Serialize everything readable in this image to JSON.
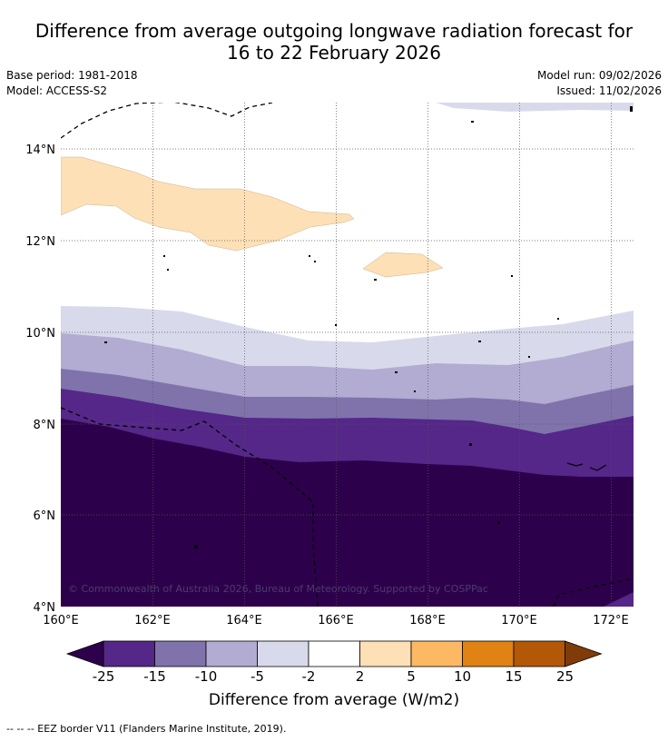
{
  "title_line1": "Difference from average outgoing longwave radiation forecast for",
  "title_line2": "16 to 22 February 2026",
  "base_period": "Base period: 1981-2018",
  "model": "Model: ACCESS-S2",
  "model_run": "Model run: 09/02/2026",
  "issued": "Issued: 11/02/2026",
  "copyright": "© Commonwealth of Australia 2026, Bureau of Meteorology. Supported by COSPPac",
  "footer_note": "--  --  -- EEZ border V11 (Flanders Marine Institute, 2019).",
  "chart_data": {
    "type": "map",
    "title": "Difference from average outgoing longwave radiation forecast for 16 to 22 February 2026",
    "region": {
      "lon_min": 160,
      "lon_max": 172.5,
      "lat_min": 4,
      "lat_max": 15
    },
    "x_ticks": [
      "160°E",
      "162°E",
      "164°E",
      "166°E",
      "168°E",
      "170°E",
      "172°E"
    ],
    "x_tick_values": [
      160,
      162,
      164,
      166,
      168,
      170,
      172
    ],
    "y_ticks": [
      "14°N",
      "12°N",
      "10°N",
      "8°N",
      "6°N",
      "4°N"
    ],
    "y_tick_values": [
      14,
      12,
      10,
      8,
      6,
      4
    ],
    "colorbar": {
      "label": "Difference from average (W/m2)",
      "tick_labels": [
        "-25",
        "-15",
        "-10",
        "-5",
        "-2",
        "2",
        "5",
        "10",
        "15",
        "25"
      ],
      "colors": [
        "#2d004b",
        "#542788",
        "#8073ac",
        "#b2abd2",
        "#d8daeb",
        "#ffffff",
        "#fee0b6",
        "#fdb863",
        "#e08214",
        "#b35806",
        "#7f3b08"
      ]
    },
    "anomaly_bands": [
      {
        "range": "below -25",
        "color": "#2d004b",
        "area": "south of about 7°N to 8°N"
      },
      {
        "range": "-25 to -15",
        "color": "#542788",
        "area": "about 7°N to 8.7°N"
      },
      {
        "range": "-15 to -10",
        "color": "#8073ac",
        "area": "about 8.2°N to 9.2°N"
      },
      {
        "range": "-10 to -5",
        "color": "#b2abd2",
        "area": "about 8.5°N to 10°N"
      },
      {
        "range": "-5 to -2",
        "color": "#d8daeb",
        "area": "about 9.2°N to 10.6°N and along northern edge near 15°N"
      },
      {
        "range": "2 to 5",
        "color": "#fee0b6",
        "area": "patches near 12°N to 13.8°N between 160°E and 166.5°E and near 11.5°N around 167°E"
      }
    ]
  }
}
